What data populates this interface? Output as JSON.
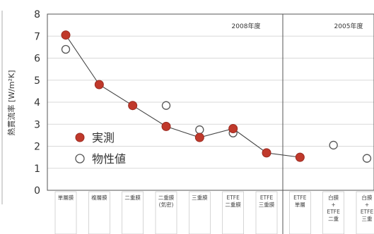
{
  "chart_data": {
    "type": "line",
    "title": "",
    "ylabel": "熱貫流率 [W/m²K]",
    "xlabel": "",
    "ylim": [
      0,
      8
    ],
    "y_ticks": [
      "0",
      "1",
      "2",
      "3",
      "4",
      "5",
      "6",
      "7",
      "8"
    ],
    "grid": true,
    "legend_position": "center-left",
    "period_labels": [
      "2008年度",
      "2005年度"
    ],
    "categories": [
      [
        "単層膜"
      ],
      [
        "複層膜"
      ],
      [
        "二重膜"
      ],
      [
        "二重膜",
        "(気密)"
      ],
      [
        "三重膜"
      ],
      [
        "ETFE",
        "二重膜"
      ],
      [
        "ETFE",
        "三重膜"
      ],
      [
        "ETFE",
        "単層"
      ],
      [
        "白膜",
        "+",
        "ETFE",
        "二重"
      ],
      [
        "白膜",
        "+",
        "ETFE",
        "三重"
      ]
    ],
    "series": [
      {
        "name": "実測",
        "marker": "filled-circle",
        "color": "#c0392b",
        "values": [
          7.05,
          4.8,
          3.85,
          2.9,
          2.4,
          2.8,
          1.7,
          1.5,
          null,
          null
        ]
      },
      {
        "name": "物性値",
        "marker": "open-circle",
        "color": "#666666",
        "values": [
          6.4,
          null,
          3.85,
          3.85,
          2.75,
          2.6,
          1.7,
          null,
          2.05,
          1.45
        ]
      }
    ]
  }
}
